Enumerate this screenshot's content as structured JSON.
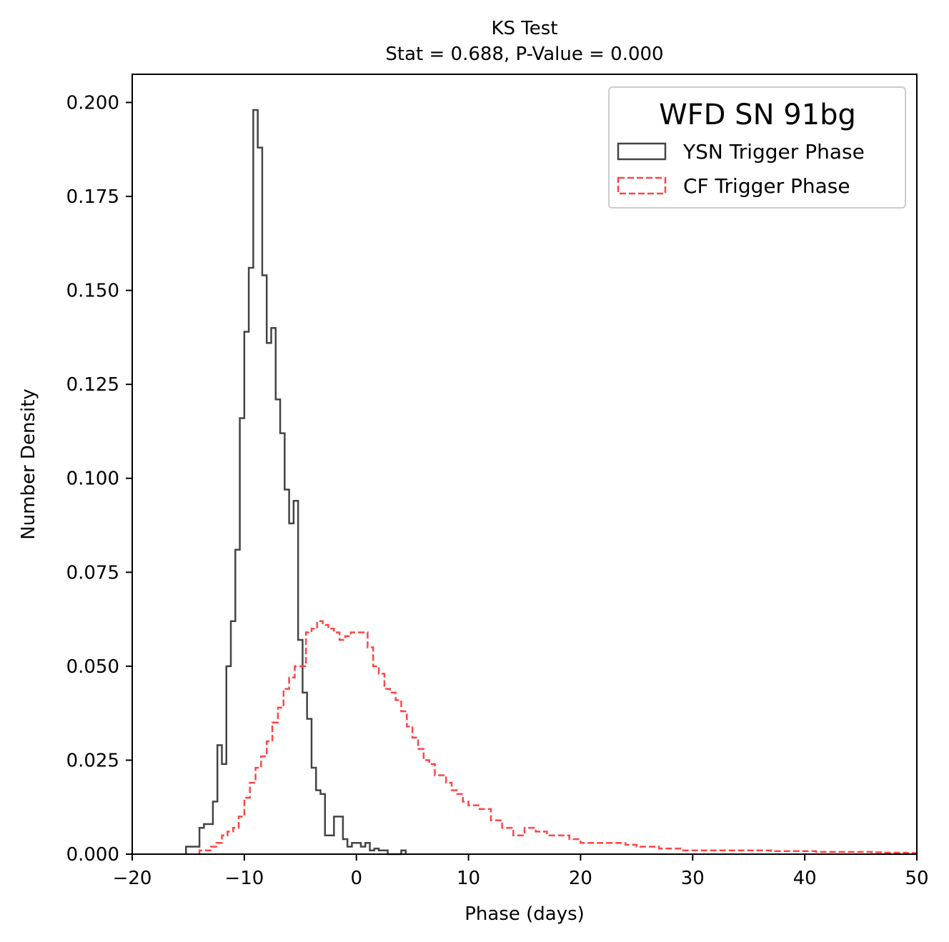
{
  "chart_data": {
    "type": "histogram",
    "title": "KS Test",
    "subtitle": "Stat = 0.688, P-Value = 0.000",
    "xlabel": "Phase (days)",
    "ylabel": "Number Density",
    "xlim": [
      -20,
      50
    ],
    "ylim": [
      0,
      0.2075
    ],
    "xticks": [
      -20,
      -10,
      0,
      10,
      20,
      30,
      40,
      50
    ],
    "xtick_labels": [
      "−20",
      "−10",
      "0",
      "10",
      "20",
      "30",
      "40",
      "50"
    ],
    "yticks": [
      0.0,
      0.025,
      0.05,
      0.075,
      0.1,
      0.125,
      0.15,
      0.175,
      0.2
    ],
    "ytick_labels": [
      "0.000",
      "0.025",
      "0.050",
      "0.075",
      "0.100",
      "0.125",
      "0.150",
      "0.175",
      "0.200"
    ],
    "grid": false,
    "legend": {
      "title": "WFD SN 91bg",
      "placement": "top-right"
    },
    "series": [
      {
        "name": "YSN Trigger Phase",
        "style": "solid-step",
        "color": "#444444",
        "bin_edges": [
          -15.2,
          -14.8,
          -14.4,
          -14.0,
          -13.6,
          -13.2,
          -12.8,
          -12.4,
          -12.0,
          -11.6,
          -11.2,
          -10.8,
          -10.4,
          -10.0,
          -9.6,
          -9.2,
          -8.8,
          -8.4,
          -8.0,
          -7.6,
          -7.2,
          -6.8,
          -6.4,
          -6.0,
          -5.6,
          -5.2,
          -4.8,
          -4.4,
          -4.0,
          -3.6,
          -3.2,
          -2.8,
          -2.4,
          -2.0,
          -1.6,
          -1.2,
          -0.8,
          -0.4,
          0.0,
          0.4,
          0.8,
          1.2,
          1.6,
          2.0,
          2.4,
          2.8,
          3.2,
          3.6,
          4.0,
          4.4
        ],
        "values": [
          0.002,
          0.002,
          0.002,
          0.007,
          0.008,
          0.008,
          0.014,
          0.029,
          0.024,
          0.05,
          0.062,
          0.081,
          0.116,
          0.139,
          0.156,
          0.198,
          0.188,
          0.154,
          0.136,
          0.14,
          0.121,
          0.112,
          0.097,
          0.088,
          0.094,
          0.057,
          0.043,
          0.036,
          0.023,
          0.017,
          0.016,
          0.005,
          0.005,
          0.01,
          0.01,
          0.004,
          0.002,
          0.003,
          0.003,
          0.002,
          0.003,
          0.001,
          0.0015,
          0.001,
          0.001,
          0.0,
          0.0,
          0.0,
          0.001
        ]
      },
      {
        "name": "CF Trigger Phase",
        "style": "dashed-step",
        "color": "#ff4444",
        "bin_edges": [
          -14.0,
          -13.5,
          -13.0,
          -12.5,
          -12.0,
          -11.5,
          -11.0,
          -10.5,
          -10.0,
          -9.5,
          -9.0,
          -8.5,
          -8.0,
          -7.5,
          -7.0,
          -6.5,
          -6.0,
          -5.5,
          -5.0,
          -4.5,
          -4.0,
          -3.5,
          -3.0,
          -2.5,
          -2.0,
          -1.5,
          -1.0,
          -0.5,
          0.0,
          0.5,
          1.0,
          1.5,
          2.0,
          2.5,
          3.0,
          3.5,
          4.0,
          4.5,
          5.0,
          5.5,
          6.0,
          6.5,
          7.0,
          7.5,
          8.0,
          8.5,
          9.0,
          9.5,
          10.0,
          11.0,
          12.0,
          13.0,
          14.0,
          15.0,
          16.0,
          17.0,
          18.0,
          19.0,
          20.0,
          21.0,
          22.0,
          23.0,
          24.0,
          25.0,
          26.0,
          27.0,
          28.0,
          29.0,
          30.0,
          31.0,
          32.0,
          33.0,
          34.0,
          35.0,
          36.0,
          37.0,
          38.0,
          39.0,
          40.0,
          41.0,
          42.0,
          43.0,
          44.0,
          45.0,
          46.0,
          47.0,
          48.0,
          49.0,
          50.0
        ],
        "values": [
          0.001,
          0.001,
          0.002,
          0.003,
          0.005,
          0.006,
          0.007,
          0.01,
          0.015,
          0.019,
          0.023,
          0.026,
          0.03,
          0.035,
          0.039,
          0.044,
          0.047,
          0.05,
          0.05,
          0.059,
          0.06,
          0.062,
          0.061,
          0.06,
          0.059,
          0.057,
          0.058,
          0.059,
          0.059,
          0.059,
          0.055,
          0.05,
          0.048,
          0.044,
          0.043,
          0.041,
          0.038,
          0.034,
          0.031,
          0.028,
          0.025,
          0.024,
          0.021,
          0.021,
          0.019,
          0.017,
          0.016,
          0.014,
          0.013,
          0.012,
          0.009,
          0.007,
          0.005,
          0.007,
          0.006,
          0.005,
          0.005,
          0.004,
          0.003,
          0.003,
          0.003,
          0.003,
          0.0025,
          0.002,
          0.002,
          0.0015,
          0.0015,
          0.001,
          0.001,
          0.001,
          0.001,
          0.001,
          0.001,
          0.001,
          0.001,
          0.0008,
          0.0008,
          0.0008,
          0.0008,
          0.0006,
          0.0006,
          0.0006,
          0.0006,
          0.0006,
          0.0005,
          0.0004,
          0.0004,
          0.0003
        ]
      }
    ]
  }
}
